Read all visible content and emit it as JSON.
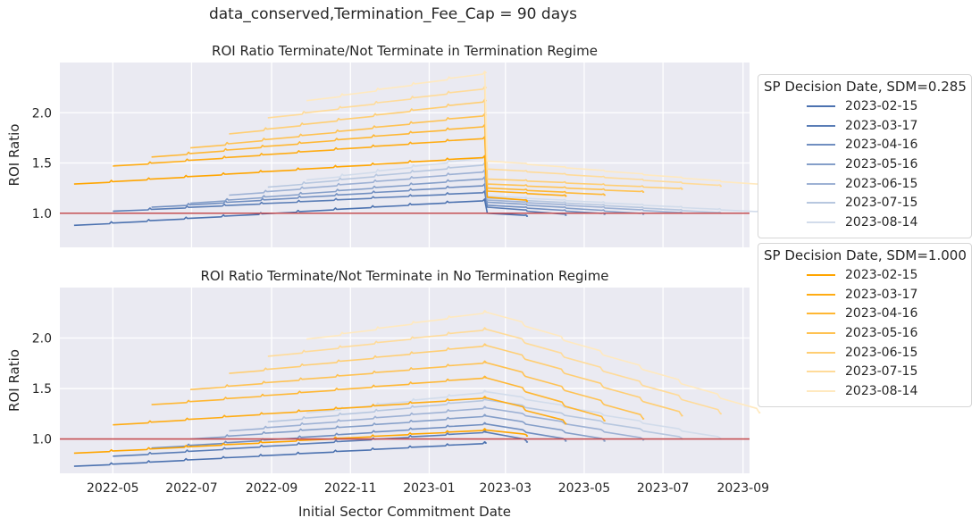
{
  "suptitle": "data_conserved,Termination_Fee_Cap = 90 days",
  "colors": {
    "axes_bg": "#eaeaf2",
    "grid": "#ffffff",
    "hline": "#c44e52",
    "blue": "#4c72b0",
    "orange": "#ffa500"
  },
  "legends": [
    {
      "title": "SP Decision Date, SDM=0.285",
      "color": "#4c72b0",
      "entries": [
        "2023-02-15",
        "2023-03-17",
        "2023-04-16",
        "2023-05-16",
        "2023-06-15",
        "2023-07-15",
        "2023-08-14"
      ]
    },
    {
      "title": "SP Decision Date, SDM=1.000",
      "color": "#ffa500",
      "entries": [
        "2023-02-15",
        "2023-03-17",
        "2023-04-16",
        "2023-05-16",
        "2023-06-15",
        "2023-07-15",
        "2023-08-14"
      ]
    }
  ],
  "chart_data": [
    {
      "type": "line",
      "title": "ROI Ratio Terminate/Not Terminate in Termination Regime",
      "xlabel": "",
      "ylabel": "ROI Ratio",
      "xlim": [
        "2022-03-21",
        "2023-09-06"
      ],
      "ylim": [
        0.66,
        2.5
      ],
      "yticks": [
        1.0,
        1.5,
        2.0
      ],
      "ytick_labels": [
        "1.0",
        "1.5",
        "2.0"
      ],
      "xticks": [
        "2022-05-01",
        "2022-07-01",
        "2022-09-01",
        "2022-11-01",
        "2023-01-01",
        "2023-03-01",
        "2023-05-01",
        "2023-07-01",
        "2023-09-01"
      ],
      "xtick_labels": [],
      "hline": 1.0,
      "grid": true,
      "series": [
        {
          "legend": "SDM=0.285",
          "label": "2023-02-15",
          "x": [
            "2022-04-01",
            "2023-02-13",
            "2023-02-15",
            "2023-03-17"
          ],
          "y": [
            0.88,
            1.13,
            1.0,
            0.97
          ]
        },
        {
          "legend": "SDM=0.285",
          "label": "2023-03-17",
          "x": [
            "2022-05-01",
            "2023-02-13",
            "2023-02-15",
            "2023-04-16"
          ],
          "y": [
            1.02,
            1.21,
            1.06,
            0.98
          ]
        },
        {
          "legend": "SDM=0.285",
          "label": "2023-04-16",
          "x": [
            "2022-05-31",
            "2023-02-13",
            "2023-02-15",
            "2023-05-16"
          ],
          "y": [
            1.06,
            1.28,
            1.08,
            0.99
          ]
        },
        {
          "legend": "SDM=0.285",
          "label": "2023-05-16",
          "x": [
            "2022-06-30",
            "2023-02-13",
            "2023-02-15",
            "2023-06-15"
          ],
          "y": [
            1.1,
            1.35,
            1.11,
            0.99
          ]
        },
        {
          "legend": "SDM=0.285",
          "label": "2023-06-15",
          "x": [
            "2022-07-30",
            "2023-02-13",
            "2023-02-15",
            "2023-07-15"
          ],
          "y": [
            1.18,
            1.42,
            1.13,
            1.0
          ]
        },
        {
          "legend": "SDM=0.285",
          "label": "2023-07-15",
          "x": [
            "2022-08-29",
            "2023-02-13",
            "2023-02-15",
            "2023-08-14"
          ],
          "y": [
            1.26,
            1.49,
            1.15,
            1.0
          ]
        },
        {
          "legend": "SDM=0.285",
          "label": "2023-08-14",
          "x": [
            "2022-09-28",
            "2023-02-13",
            "2023-02-15",
            "2023-09-13"
          ],
          "y": [
            1.33,
            1.56,
            1.17,
            1.01
          ]
        },
        {
          "legend": "SDM=1.000",
          "label": "2023-02-15",
          "x": [
            "2022-04-01",
            "2023-02-13",
            "2023-02-15",
            "2023-03-17"
          ],
          "y": [
            1.29,
            1.56,
            1.16,
            1.12
          ]
        },
        {
          "legend": "SDM=1.000",
          "label": "2023-03-17",
          "x": [
            "2022-05-01",
            "2023-02-13",
            "2023-02-15",
            "2023-04-16"
          ],
          "y": [
            1.47,
            1.75,
            1.22,
            1.17
          ]
        },
        {
          "legend": "SDM=1.000",
          "label": "2023-04-16",
          "x": [
            "2022-05-31",
            "2023-02-13",
            "2023-02-15",
            "2023-05-16"
          ],
          "y": [
            1.56,
            1.87,
            1.25,
            1.18
          ]
        },
        {
          "legend": "SDM=1.000",
          "label": "2023-05-16",
          "x": [
            "2022-06-30",
            "2023-02-13",
            "2023-02-15",
            "2023-06-15"
          ],
          "y": [
            1.65,
            1.98,
            1.29,
            1.21
          ]
        },
        {
          "legend": "SDM=1.000",
          "label": "2023-06-15",
          "x": [
            "2022-07-30",
            "2023-02-13",
            "2023-02-15",
            "2023-07-15"
          ],
          "y": [
            1.79,
            2.12,
            1.34,
            1.24
          ]
        },
        {
          "legend": "SDM=1.000",
          "label": "2023-07-15",
          "x": [
            "2022-08-29",
            "2023-02-13",
            "2023-02-15",
            "2023-08-14"
          ],
          "y": [
            1.95,
            2.25,
            1.44,
            1.27
          ]
        },
        {
          "legend": "SDM=1.000",
          "label": "2023-08-14",
          "x": [
            "2022-09-28",
            "2023-02-13",
            "2023-02-15",
            "2023-09-13"
          ],
          "y": [
            2.12,
            2.4,
            1.52,
            1.28
          ]
        }
      ]
    },
    {
      "type": "line",
      "title": "ROI Ratio Terminate/Not Terminate in No Termination Regime",
      "xlabel": "Initial Sector Commitment Date",
      "ylabel": "ROI Ratio",
      "xlim": [
        "2022-03-21",
        "2023-09-06"
      ],
      "ylim": [
        0.66,
        2.5
      ],
      "yticks": [
        1.0,
        1.5,
        2.0
      ],
      "ytick_labels": [
        "1.0",
        "1.5",
        "2.0"
      ],
      "xticks": [
        "2022-05-01",
        "2022-07-01",
        "2022-09-01",
        "2022-11-01",
        "2023-01-01",
        "2023-03-01",
        "2023-05-01",
        "2023-07-01",
        "2023-09-01"
      ],
      "xtick_labels": [
        "2022-05",
        "2022-07",
        "2022-09",
        "2022-11",
        "2023-01",
        "2023-03",
        "2023-05",
        "2023-07",
        "2023-09"
      ],
      "hline": 1.0,
      "grid": true,
      "series": [
        {
          "legend": "SDM=0.285",
          "label": "2023-02-15",
          "x": [
            "2022-04-01",
            "2023-02-13"
          ],
          "y": [
            0.73,
            0.96
          ]
        },
        {
          "legend": "SDM=0.285",
          "label": "2023-03-17",
          "x": [
            "2022-05-01",
            "2023-02-13",
            "2023-03-17"
          ],
          "y": [
            0.83,
            1.07,
            0.97
          ]
        },
        {
          "legend": "SDM=0.285",
          "label": "2023-04-16",
          "x": [
            "2022-05-31",
            "2023-02-13",
            "2023-04-16"
          ],
          "y": [
            0.91,
            1.15,
            0.98
          ]
        },
        {
          "legend": "SDM=0.285",
          "label": "2023-05-16",
          "x": [
            "2022-06-30",
            "2023-02-13",
            "2023-05-16"
          ],
          "y": [
            1.0,
            1.23,
            0.98
          ]
        },
        {
          "legend": "SDM=0.285",
          "label": "2023-06-15",
          "x": [
            "2022-07-30",
            "2023-02-13",
            "2023-06-15"
          ],
          "y": [
            1.08,
            1.31,
            0.99
          ]
        },
        {
          "legend": "SDM=0.285",
          "label": "2023-07-15",
          "x": [
            "2022-08-29",
            "2023-02-13",
            "2023-07-15"
          ],
          "y": [
            1.17,
            1.39,
            1.0
          ]
        },
        {
          "legend": "SDM=0.285",
          "label": "2023-08-14",
          "x": [
            "2022-09-28",
            "2023-02-13",
            "2023-08-14"
          ],
          "y": [
            1.26,
            1.47,
            1.0
          ]
        },
        {
          "legend": "SDM=1.000",
          "label": "2023-02-15",
          "x": [
            "2022-04-01",
            "2023-02-13",
            "2023-03-17"
          ],
          "y": [
            0.86,
            1.09,
            1.03
          ]
        },
        {
          "legend": "SDM=1.000",
          "label": "2023-03-17",
          "x": [
            "2022-05-01",
            "2023-02-13",
            "2023-04-16"
          ],
          "y": [
            1.14,
            1.41,
            1.15
          ]
        },
        {
          "legend": "SDM=1.000",
          "label": "2023-04-16",
          "x": [
            "2022-05-31",
            "2023-02-13",
            "2023-05-16"
          ],
          "y": [
            1.34,
            1.61,
            1.18
          ]
        },
        {
          "legend": "SDM=1.000",
          "label": "2023-05-16",
          "x": [
            "2022-06-30",
            "2023-02-13",
            "2023-06-15"
          ],
          "y": [
            1.49,
            1.76,
            1.2
          ]
        },
        {
          "legend": "SDM=1.000",
          "label": "2023-06-15",
          "x": [
            "2022-07-30",
            "2023-02-13",
            "2023-07-15"
          ],
          "y": [
            1.65,
            1.93,
            1.23
          ]
        },
        {
          "legend": "SDM=1.000",
          "label": "2023-07-15",
          "x": [
            "2022-08-29",
            "2023-02-13",
            "2023-08-14"
          ],
          "y": [
            1.82,
            2.09,
            1.25
          ]
        },
        {
          "legend": "SDM=1.000",
          "label": "2023-08-14",
          "x": [
            "2022-09-28",
            "2023-02-13",
            "2023-09-13"
          ],
          "y": [
            1.99,
            2.26,
            1.26
          ]
        }
      ]
    }
  ]
}
